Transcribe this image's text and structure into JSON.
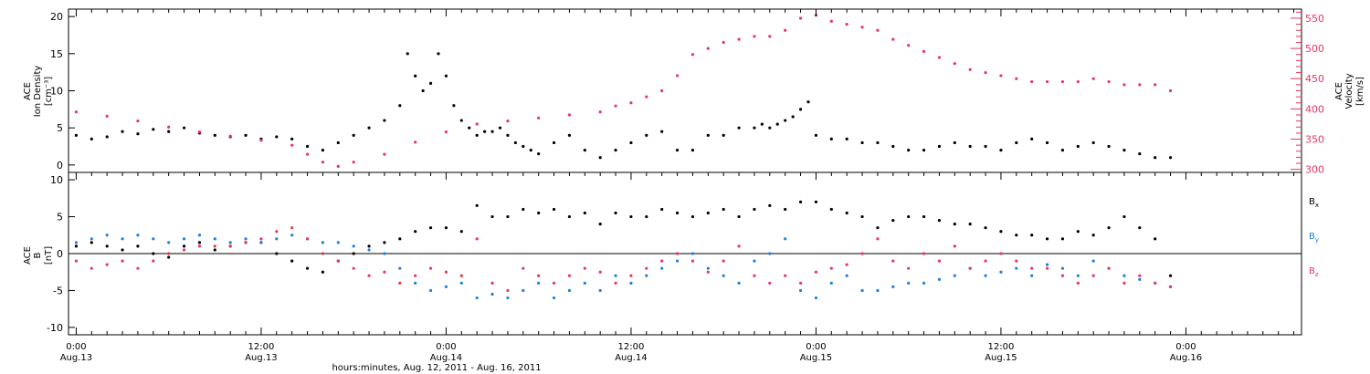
{
  "colors": {
    "black": "#000000",
    "pink": "#e8365f",
    "blue": "#1f7fe0"
  },
  "xaxis": {
    "title": "hours:minutes, Aug. 12, 2011 - Aug. 16, 2011",
    "range_hours_from_aug13_0000": [
      -0.5,
      79.5
    ],
    "ticks": [
      {
        "hours": 0,
        "time": "0:00",
        "date": "Aug.13"
      },
      {
        "hours": 12,
        "time": "12:00",
        "date": "Aug.13"
      },
      {
        "hours": 24,
        "time": "0:00",
        "date": "Aug.14"
      },
      {
        "hours": 36,
        "time": "12:00",
        "date": "Aug.14"
      },
      {
        "hours": 48,
        "time": "0:00",
        "date": "Aug.15"
      },
      {
        "hours": 60,
        "time": "12:00",
        "date": "Aug.15"
      },
      {
        "hours": 72,
        "time": "0:00",
        "date": "Aug.16"
      }
    ]
  },
  "chart_data": [
    {
      "type": "scatter",
      "panel": "top",
      "left_ylabel": [
        "ACE",
        "Ion Density",
        "[cm⁻³]"
      ],
      "right_ylabel": [
        "ACE",
        "Velocity",
        "[km/s]"
      ],
      "left_ylim": [
        -1,
        21
      ],
      "right_ylim": [
        295,
        565
      ],
      "left_ticks": [
        "0",
        "5",
        "10",
        "15",
        "20"
      ],
      "right_ticks": [
        "300",
        "350",
        "400",
        "450",
        "500",
        "550"
      ],
      "grid": false,
      "series": [
        {
          "axis": "left",
          "color": "#000000",
          "x": [
            0,
            1,
            2,
            3,
            4,
            5,
            6,
            7,
            8,
            9,
            10,
            11,
            12,
            13,
            14,
            15,
            16,
            17,
            18,
            19,
            20,
            21,
            21.5,
            22,
            22.5,
            23,
            23.5,
            24,
            24.5,
            25,
            25.5,
            26,
            26.5,
            27,
            27.5,
            28,
            28.5,
            29,
            29.5,
            30,
            31,
            32,
            33,
            34,
            35,
            36,
            37,
            38,
            39,
            40,
            41,
            42,
            43,
            44,
            44.5,
            45,
            45.5,
            46,
            46.5,
            47,
            47.5,
            48,
            49,
            50,
            51,
            52,
            53,
            54,
            55,
            56,
            57,
            58,
            59,
            60,
            61,
            62,
            63,
            64,
            65,
            66,
            67,
            68,
            69,
            70,
            71
          ],
          "y": [
            4,
            3.5,
            3.8,
            4.5,
            4.2,
            4.8,
            4.5,
            5,
            4.3,
            4,
            3.8,
            4,
            3.5,
            3.8,
            3.5,
            2.5,
            2,
            3,
            4,
            5,
            6,
            8,
            15,
            12,
            10,
            11,
            15,
            12,
            8,
            6,
            5,
            4,
            4.5,
            4.5,
            5,
            4,
            3,
            2.5,
            2,
            1.5,
            3,
            4,
            2,
            1,
            2,
            3,
            4,
            4.5,
            2,
            2,
            4,
            4,
            5,
            5,
            5.5,
            5,
            5.5,
            6,
            6.5,
            7.5,
            8.5,
            4,
            3.5,
            3.5,
            3,
            3,
            2.5,
            2,
            2,
            2.5,
            3,
            2.5,
            2.5,
            2,
            3,
            3.5,
            3,
            2,
            2.5,
            3,
            2.5,
            2,
            1.5,
            1,
            1
          ]
        },
        {
          "axis": "right",
          "color": "#e8365f",
          "x": [
            0,
            2,
            4,
            6,
            8,
            10,
            12,
            14,
            15,
            16,
            17,
            18,
            20,
            22,
            24,
            26,
            28,
            30,
            32,
            34,
            35,
            36,
            37,
            38,
            39,
            40,
            41,
            42,
            43,
            44,
            45,
            46,
            47,
            48,
            49,
            50,
            51,
            52,
            53,
            54,
            55,
            56,
            57,
            58,
            59,
            60,
            61,
            62,
            63,
            64,
            65,
            66,
            67,
            68,
            69,
            70,
            71
          ],
          "y": [
            395,
            388,
            380,
            370,
            362,
            355,
            348,
            340,
            325,
            312,
            305,
            312,
            325,
            345,
            362,
            375,
            380,
            385,
            390,
            395,
            405,
            410,
            420,
            430,
            455,
            490,
            500,
            510,
            515,
            520,
            520,
            530,
            550,
            555,
            545,
            540,
            535,
            530,
            515,
            505,
            495,
            485,
            475,
            465,
            460,
            455,
            450,
            445,
            445,
            445,
            445,
            450,
            445,
            440,
            440,
            440,
            430
          ]
        }
      ]
    },
    {
      "type": "scatter",
      "panel": "bottom",
      "left_ylabel": [
        "ACE",
        "B",
        "[nT]"
      ],
      "ylim": [
        -11,
        11
      ],
      "left_ticks": [
        "-10",
        "-5",
        "0",
        "5",
        "10"
      ],
      "zero_line": true,
      "grid": false,
      "legend": "right",
      "series": [
        {
          "name": "Bx",
          "color": "#000000",
          "x": [
            0,
            1,
            2,
            3,
            4,
            5,
            6,
            7,
            8,
            9,
            10,
            11,
            12,
            13,
            14,
            15,
            16,
            17,
            18,
            19,
            20,
            21,
            22,
            23,
            24,
            25,
            26,
            27,
            28,
            29,
            30,
            31,
            32,
            33,
            34,
            35,
            36,
            37,
            38,
            39,
            40,
            41,
            42,
            43,
            44,
            45,
            46,
            47,
            48,
            49,
            50,
            51,
            52,
            53,
            54,
            55,
            56,
            57,
            58,
            59,
            60,
            61,
            62,
            63,
            64,
            65,
            66,
            67,
            68,
            69,
            70,
            71
          ],
          "y": [
            1,
            1.5,
            1,
            0.5,
            1,
            0,
            -0.5,
            1,
            1.5,
            0.5,
            1,
            1.5,
            1.5,
            0,
            -1,
            -2,
            -2.5,
            -1,
            0,
            1,
            1.5,
            2,
            3,
            3.5,
            3.5,
            3,
            6.5,
            5,
            5,
            6,
            5.5,
            6,
            5,
            5.5,
            4,
            5.5,
            5,
            5,
            6,
            5.5,
            5,
            5.5,
            6,
            5,
            6,
            6.5,
            6,
            7,
            7,
            6,
            5.5,
            5,
            3.5,
            4.5,
            5,
            5,
            4.5,
            4,
            4,
            3.5,
            3,
            2.5,
            2.5,
            2,
            2,
            3,
            2.5,
            3.5,
            5,
            3.5,
            2,
            -3
          ]
        },
        {
          "name": "By",
          "color": "#1f7fe0",
          "x": [
            0,
            1,
            2,
            3,
            4,
            5,
            6,
            7,
            8,
            9,
            10,
            11,
            12,
            13,
            14,
            15,
            16,
            17,
            18,
            19,
            20,
            21,
            22,
            23,
            24,
            25,
            26,
            27,
            28,
            29,
            30,
            31,
            32,
            33,
            34,
            35,
            36,
            37,
            38,
            39,
            40,
            41,
            42,
            43,
            44,
            45,
            46,
            47,
            48,
            49,
            50,
            51,
            52,
            53,
            54,
            55,
            56,
            57,
            58,
            59,
            60,
            61,
            62,
            63,
            64,
            65,
            66,
            67,
            68,
            69,
            70,
            71
          ],
          "y": [
            1.5,
            2,
            2.5,
            2,
            2.5,
            2,
            1.5,
            2,
            2.5,
            2,
            1.5,
            2,
            1.5,
            2,
            2.5,
            2,
            1.5,
            1.5,
            1,
            0.5,
            0,
            -2,
            -4,
            -5,
            -4.5,
            -4,
            -6,
            -5.5,
            -6,
            -5,
            -4,
            -6,
            -5,
            -4,
            -5,
            -3,
            -4,
            -3,
            -2,
            -1,
            0,
            -2,
            -3,
            -4,
            -1,
            0,
            2,
            -5,
            -6,
            -4,
            -3,
            -5,
            -5,
            -4.5,
            -4,
            -4,
            -3.5,
            -3,
            -2,
            -3,
            -2.5,
            -2,
            -3,
            -1.5,
            -2,
            -3,
            -1,
            -2,
            -3,
            -3.5,
            -4,
            -4.5
          ]
        },
        {
          "name": "Bz",
          "color": "#e8365f",
          "x": [
            0,
            1,
            2,
            3,
            4,
            5,
            6,
            7,
            8,
            9,
            10,
            11,
            12,
            13,
            14,
            15,
            16,
            17,
            18,
            19,
            20,
            21,
            22,
            23,
            24,
            25,
            26,
            27,
            28,
            29,
            30,
            31,
            32,
            33,
            34,
            35,
            36,
            37,
            38,
            39,
            40,
            41,
            42,
            43,
            44,
            45,
            46,
            47,
            48,
            49,
            50,
            51,
            52,
            53,
            54,
            55,
            56,
            57,
            58,
            59,
            60,
            61,
            62,
            63,
            64,
            65,
            66,
            67,
            68,
            69,
            70,
            71
          ],
          "y": [
            -1,
            -2,
            -1.5,
            -1,
            -2,
            -1,
            0,
            0.5,
            1,
            1,
            1,
            1.5,
            2,
            3,
            3.5,
            2,
            0,
            -1,
            -2,
            -3,
            -2.5,
            -4,
            -3,
            -2,
            -2.5,
            -3,
            2,
            -4,
            -5,
            -2,
            -3,
            -4,
            -3,
            -2,
            -2.5,
            -4,
            -3,
            -2,
            -1,
            0,
            -1,
            -2.5,
            -1,
            1,
            -3,
            -4,
            -3,
            -4,
            -2.5,
            -2,
            -1.5,
            0,
            2,
            -1,
            -2,
            0,
            -1,
            1,
            -2,
            -1,
            0,
            -1,
            -2,
            -2,
            -3,
            -4,
            -3,
            -2,
            -4,
            -3,
            -4,
            -4.5
          ]
        }
      ]
    }
  ]
}
